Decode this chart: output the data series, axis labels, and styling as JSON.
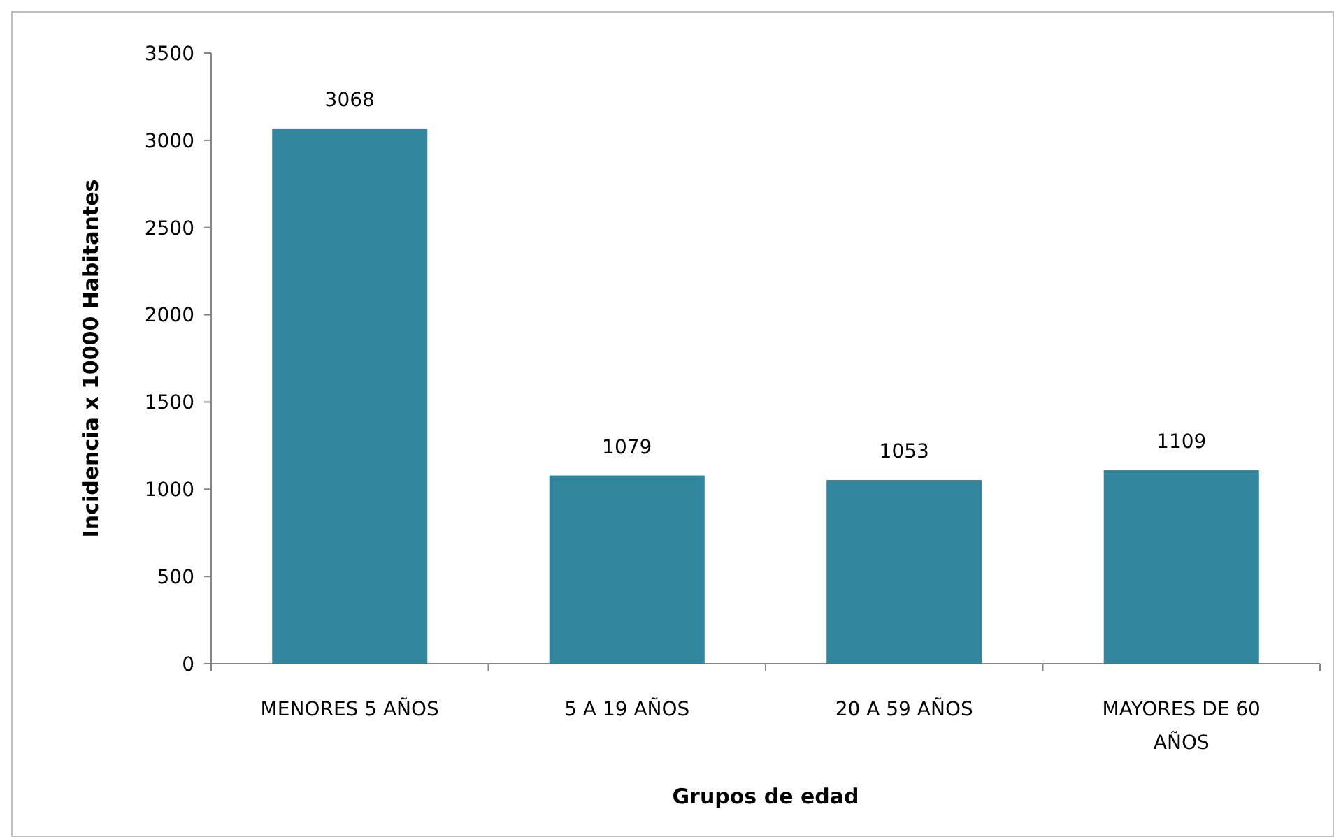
{
  "chart_data": {
    "type": "bar",
    "xlabel": "Grupos de edad",
    "ylabel": "Incidencia x 10000 Habitantes",
    "categories": [
      "MENORES 5 AÑOS",
      "5 A 19 AÑOS",
      "20 A 59 AÑOS",
      "MAYORES DE 60 AÑOS"
    ],
    "values": [
      3068,
      1079,
      1053,
      1109
    ],
    "color": "#31859c",
    "ylim": [
      0,
      3500
    ],
    "yticks": [
      0,
      500,
      1000,
      1500,
      2000,
      2500,
      3000,
      3500
    ],
    "grid": false,
    "data_labels": true
  }
}
